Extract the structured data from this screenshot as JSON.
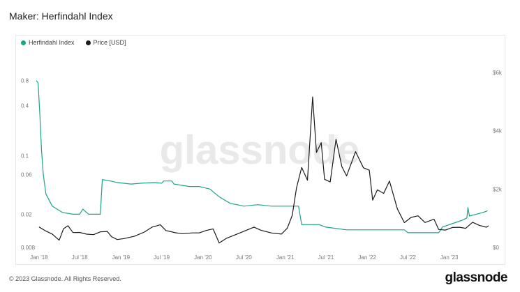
{
  "title": "Maker: Herfindahl Index",
  "footer": {
    "copyright": "© 2023 Glassnode. All Rights Reserved.",
    "brand": "glassnode",
    "watermark": "glassnode"
  },
  "colors": {
    "herfindahl": "#1aa389",
    "price": "#1a1a1a"
  },
  "chart_data": {
    "type": "line",
    "legend_position": "top-left",
    "grid": false,
    "x": {
      "ticks": [
        "Jan '18",
        "Jul '18",
        "Jan '19",
        "Jul '19",
        "Jan '20",
        "Jul '20",
        "Jan '21",
        "Jul '21",
        "Jan '22",
        "Jul '22",
        "Jan '23"
      ]
    },
    "y_left": {
      "scale": "log",
      "ticks": [
        "0.8",
        "0.4",
        "0.1",
        "0.06",
        "0.02",
        "0.008"
      ],
      "range": [
        0.008,
        1.0
      ]
    },
    "y_right": {
      "scale": "linear",
      "ticks": [
        "$6k",
        "$4k",
        "$2k",
        "$0"
      ],
      "range": [
        0,
        6000
      ]
    },
    "series": [
      {
        "name": "Herfindahl Index",
        "axis": "left",
        "points": [
          [
            "2017-12-20",
            0.8
          ],
          [
            "2017-12-28",
            0.75
          ],
          [
            "2018-01-05",
            0.3
          ],
          [
            "2018-01-12",
            0.12
          ],
          [
            "2018-01-20",
            0.06
          ],
          [
            "2018-02-01",
            0.035
          ],
          [
            "2018-03-01",
            0.025
          ],
          [
            "2018-04-15",
            0.021
          ],
          [
            "2018-06-01",
            0.02
          ],
          [
            "2018-07-01",
            0.02
          ],
          [
            "2018-07-15",
            0.023
          ],
          [
            "2018-08-10",
            0.02
          ],
          [
            "2018-09-10",
            0.02
          ],
          [
            "2018-10-01",
            0.02
          ],
          [
            "2018-10-10",
            0.052
          ],
          [
            "2018-11-15",
            0.05
          ],
          [
            "2018-12-15",
            0.048
          ],
          [
            "2019-01-10",
            0.047
          ],
          [
            "2019-02-15",
            0.046
          ],
          [
            "2019-04-01",
            0.047
          ],
          [
            "2019-06-01",
            0.048
          ],
          [
            "2019-07-01",
            0.047
          ],
          [
            "2019-07-10",
            0.05
          ],
          [
            "2019-08-15",
            0.05
          ],
          [
            "2019-08-25",
            0.046
          ],
          [
            "2019-11-01",
            0.043
          ],
          [
            "2019-12-15",
            0.043
          ],
          [
            "2020-02-01",
            0.04
          ],
          [
            "2020-03-15",
            0.032
          ],
          [
            "2020-05-01",
            0.027
          ],
          [
            "2020-07-01",
            0.025
          ],
          [
            "2020-09-01",
            0.026
          ],
          [
            "2020-11-01",
            0.025
          ],
          [
            "2021-01-01",
            0.025
          ],
          [
            "2021-03-01",
            0.025
          ],
          [
            "2021-03-15",
            0.015
          ],
          [
            "2021-06-01",
            0.015
          ],
          [
            "2021-07-01",
            0.014
          ],
          [
            "2021-10-01",
            0.013
          ],
          [
            "2022-01-01",
            0.013
          ],
          [
            "2022-04-01",
            0.013
          ],
          [
            "2022-06-15",
            0.013
          ],
          [
            "2022-07-01",
            0.012
          ],
          [
            "2022-10-01",
            0.012
          ],
          [
            "2022-11-15",
            0.012
          ],
          [
            "2022-12-01",
            0.014
          ],
          [
            "2023-01-01",
            0.015
          ],
          [
            "2023-02-01",
            0.016
          ],
          [
            "2023-03-01",
            0.017
          ],
          [
            "2023-03-20",
            0.018
          ],
          [
            "2023-03-25",
            0.024
          ],
          [
            "2023-04-01",
            0.019
          ],
          [
            "2023-05-01",
            0.02
          ],
          [
            "2023-06-01",
            0.021
          ],
          [
            "2023-06-20",
            0.022
          ]
        ]
      },
      {
        "name": "Price [USD]",
        "axis": "right",
        "points": [
          [
            "2018-01-01",
            700
          ],
          [
            "2018-02-01",
            600
          ],
          [
            "2018-03-01",
            500
          ],
          [
            "2018-04-01",
            250
          ],
          [
            "2018-04-20",
            600
          ],
          [
            "2018-05-10",
            700
          ],
          [
            "2018-06-01",
            500
          ],
          [
            "2018-07-01",
            550
          ],
          [
            "2018-08-01",
            500
          ],
          [
            "2018-09-01",
            450
          ],
          [
            "2018-10-01",
            500
          ],
          [
            "2018-11-01",
            500
          ],
          [
            "2018-11-20",
            350
          ],
          [
            "2018-12-15",
            300
          ],
          [
            "2019-01-15",
            350
          ],
          [
            "2019-03-01",
            400
          ],
          [
            "2019-04-15",
            500
          ],
          [
            "2019-05-20",
            650
          ],
          [
            "2019-06-25",
            750
          ],
          [
            "2019-07-20",
            600
          ],
          [
            "2019-09-01",
            550
          ],
          [
            "2019-10-01",
            500
          ],
          [
            "2019-11-15",
            480
          ],
          [
            "2019-12-15",
            450
          ],
          [
            "2020-01-15",
            550
          ],
          [
            "2020-02-15",
            650
          ],
          [
            "2020-03-13",
            200
          ],
          [
            "2020-04-15",
            350
          ],
          [
            "2020-06-01",
            450
          ],
          [
            "2020-08-15",
            650
          ],
          [
            "2020-09-15",
            550
          ],
          [
            "2020-11-01",
            500
          ],
          [
            "2020-12-15",
            500
          ],
          [
            "2021-01-10",
            700
          ],
          [
            "2021-02-01",
            1100
          ],
          [
            "2021-02-20",
            2000
          ],
          [
            "2021-03-15",
            2700
          ],
          [
            "2021-04-10",
            2300
          ],
          [
            "2021-05-03",
            5200
          ],
          [
            "2021-05-20",
            3300
          ],
          [
            "2021-06-10",
            3600
          ],
          [
            "2021-06-25",
            2300
          ],
          [
            "2021-07-20",
            2200
          ],
          [
            "2021-08-15",
            3700
          ],
          [
            "2021-09-10",
            2800
          ],
          [
            "2021-10-01",
            2500
          ],
          [
            "2021-11-10",
            3300
          ],
          [
            "2021-12-15",
            2700
          ],
          [
            "2022-01-10",
            2600
          ],
          [
            "2022-01-25",
            1600
          ],
          [
            "2022-02-15",
            2000
          ],
          [
            "2022-03-15",
            1900
          ],
          [
            "2022-04-10",
            2300
          ],
          [
            "2022-05-15",
            1300
          ],
          [
            "2022-06-15",
            800
          ],
          [
            "2022-07-15",
            1000
          ],
          [
            "2022-08-15",
            1100
          ],
          [
            "2022-09-15",
            900
          ],
          [
            "2022-10-25",
            1000
          ],
          [
            "2022-11-15",
            600
          ],
          [
            "2022-12-15",
            550
          ],
          [
            "2023-01-15",
            650
          ],
          [
            "2023-02-15",
            700
          ],
          [
            "2023-03-15",
            700
          ],
          [
            "2023-04-15",
            900
          ],
          [
            "2023-05-15",
            750
          ],
          [
            "2023-06-15",
            650
          ],
          [
            "2023-06-25",
            700
          ]
        ]
      }
    ]
  }
}
